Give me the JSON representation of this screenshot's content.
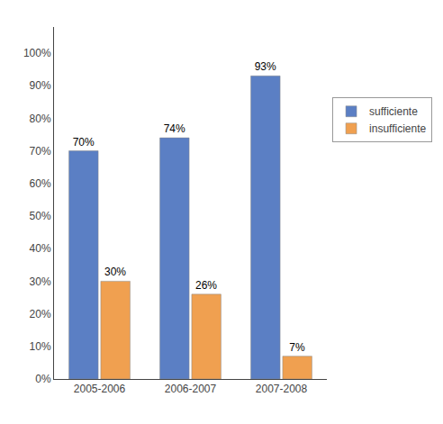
{
  "chart_data": {
    "type": "bar",
    "categories": [
      "2005-2006",
      "2006-2007",
      "2007-2008"
    ],
    "series": [
      {
        "name": "sufficiente",
        "color": "#5B7FC4",
        "values": [
          70,
          74,
          93
        ],
        "value_labels": [
          "70%",
          "74%",
          "93%"
        ]
      },
      {
        "name": "insufficiente",
        "color": "#F0A050",
        "values": [
          30,
          26,
          7
        ],
        "value_labels": [
          "30%",
          "26%",
          "7%"
        ]
      }
    ],
    "ylim": [
      0,
      108
    ],
    "yticks": [
      {
        "value": 0,
        "label": "0%"
      },
      {
        "value": 10,
        "label": "10%"
      },
      {
        "value": 20,
        "label": "20%"
      },
      {
        "value": 30,
        "label": "30%"
      },
      {
        "value": 40,
        "label": "40%"
      },
      {
        "value": 50,
        "label": "50%"
      },
      {
        "value": 60,
        "label": "60%"
      },
      {
        "value": 70,
        "label": "70%"
      },
      {
        "value": 80,
        "label": "80%"
      },
      {
        "value": 90,
        "label": "90%"
      },
      {
        "value": 100,
        "label": "100%"
      }
    ],
    "grid": false,
    "legend": "right",
    "data_labels": true
  }
}
